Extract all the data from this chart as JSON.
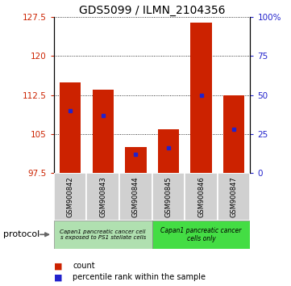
{
  "title": "GDS5099 / ILMN_2104356",
  "samples": [
    "GSM900842",
    "GSM900843",
    "GSM900844",
    "GSM900845",
    "GSM900846",
    "GSM900847"
  ],
  "counts": [
    115.0,
    113.5,
    102.5,
    106.0,
    126.5,
    112.5
  ],
  "percentile_ranks": [
    40,
    37,
    12,
    16,
    50,
    28
  ],
  "ymin": 97.5,
  "ymax": 127.5,
  "yticks": [
    97.5,
    105.0,
    112.5,
    120.0,
    127.5
  ],
  "ytick_labels": [
    "97.5",
    "105",
    "112.5",
    "120",
    "127.5"
  ],
  "right_yticks": [
    0,
    25,
    50,
    75,
    100
  ],
  "right_ytick_labels": [
    "0",
    "25",
    "50",
    "75",
    "100%"
  ],
  "bar_color": "#cc2200",
  "marker_color": "#2222cc",
  "bar_bottom": 97.5,
  "group1_label": "Capan1 pancreatic cancer cell\ns exposed to PS1 stellate cells",
  "group2_label": "Capan1 pancreatic cancer\ncells only",
  "group1_color": "#b0e0b0",
  "group2_color": "#44dd44",
  "legend_count_label": "count",
  "legend_percentile_label": "percentile rank within the sample",
  "protocol_label": "protocol",
  "title_fontsize": 10,
  "tick_fontsize": 7.5,
  "sample_fontsize": 6,
  "legend_fontsize": 7,
  "protocol_fontsize": 8,
  "left_color": "#cc2200",
  "right_color": "#2222cc"
}
